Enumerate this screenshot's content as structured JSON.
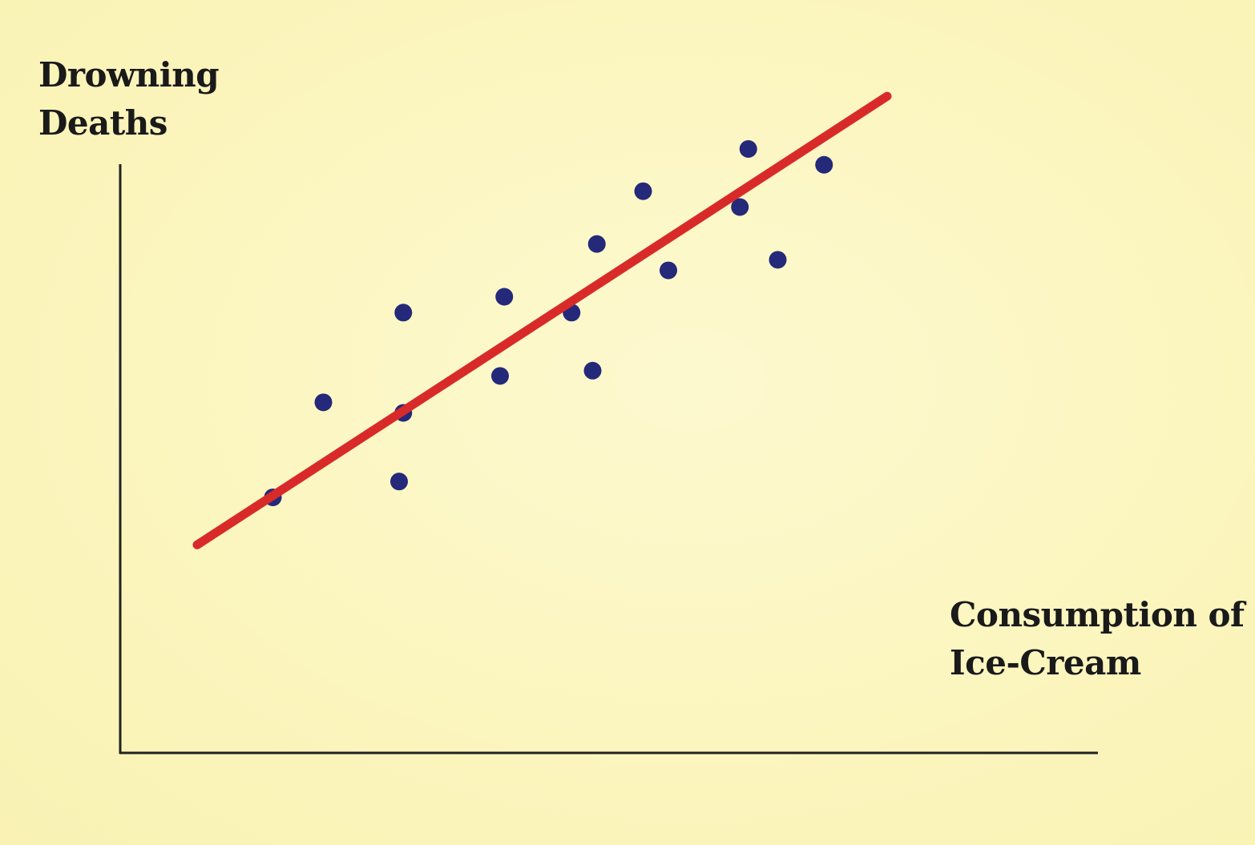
{
  "chart_data": {
    "type": "scatter",
    "title": "",
    "ylabel_lines": [
      "Drowning",
      "Deaths"
    ],
    "xlabel_lines": [
      "Consumption of",
      "Ice-Cream"
    ],
    "xlim": [
      0,
      100
    ],
    "ylim": [
      0,
      100
    ],
    "ticks": "none",
    "grid": false,
    "legend": "none",
    "points": [
      {
        "x": 15,
        "y": 34
      },
      {
        "x": 21,
        "y": 52
      },
      {
        "x": 30,
        "y": 37
      },
      {
        "x": 30.5,
        "y": 50
      },
      {
        "x": 30.5,
        "y": 69
      },
      {
        "x": 42,
        "y": 57
      },
      {
        "x": 42.5,
        "y": 72
      },
      {
        "x": 50.5,
        "y": 69
      },
      {
        "x": 53,
        "y": 58
      },
      {
        "x": 53.5,
        "y": 82
      },
      {
        "x": 59,
        "y": 92
      },
      {
        "x": 62,
        "y": 77
      },
      {
        "x": 70.5,
        "y": 89
      },
      {
        "x": 71.5,
        "y": 100
      },
      {
        "x": 75,
        "y": 79
      },
      {
        "x": 80.5,
        "y": 97
      }
    ],
    "trendline": {
      "type": "linear",
      "from": {
        "x": 6,
        "y": 25
      },
      "to": {
        "x": 88,
        "y": 110
      }
    },
    "colors": {
      "background": "#fbf6bf",
      "axis": "#222222",
      "points": "#24297a",
      "trendline": "#d92a2a",
      "label_text": "#1a1a1a"
    }
  }
}
